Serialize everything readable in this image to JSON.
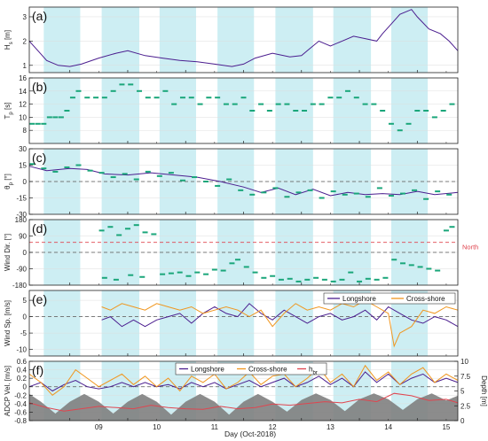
{
  "figure": {
    "xlabel": "Day (Oct-2018)",
    "xtick_labels": [
      "09",
      "10",
      "11",
      "12",
      "13",
      "14",
      "15"
    ],
    "xlim": [
      8.3,
      15.7
    ],
    "colors": {
      "shade": "#cdeef3",
      "series_purple": "#4b1e8f",
      "series_orange": "#f0961e",
      "series_green": "#1aa67a",
      "hbr": "#e0454f",
      "north_line": "#e0454f",
      "zero_line": "#555555",
      "depth_fill": "#808080",
      "axis": "#222222"
    }
  },
  "shaded_days": [
    [
      8.55,
      9.18
    ],
    [
      9.55,
      10.2
    ],
    [
      10.55,
      11.18
    ],
    [
      11.55,
      12.18
    ],
    [
      12.55,
      13.2
    ],
    [
      13.55,
      14.2
    ],
    [
      14.55,
      15.18
    ]
  ],
  "chart_data": [
    {
      "panel": "(a)",
      "type": "line",
      "ylabel": "H_s [m]",
      "ylabel_main": "H",
      "ylabel_sub": "s",
      "ylabel_tail": " [m]",
      "ylim": [
        0.7,
        3.4
      ],
      "yticks": [
        1,
        2,
        3
      ],
      "series": [
        {
          "color": "#4b1e8f",
          "x": [
            8.3,
            8.45,
            8.6,
            8.8,
            9.0,
            9.2,
            9.5,
            9.8,
            10.0,
            10.3,
            10.6,
            10.9,
            11.2,
            11.5,
            11.8,
            12.0,
            12.2,
            12.5,
            12.8,
            13.0,
            13.1,
            13.3,
            13.5,
            13.7,
            13.9,
            14.1,
            14.3,
            14.4,
            14.55,
            14.7,
            14.9,
            15.0,
            15.2,
            15.4,
            15.55,
            15.7
          ],
          "y": [
            2.0,
            1.6,
            1.2,
            1.0,
            0.95,
            1.05,
            1.3,
            1.5,
            1.6,
            1.4,
            1.3,
            1.2,
            1.15,
            1.05,
            0.95,
            1.05,
            1.3,
            1.5,
            1.35,
            1.4,
            1.6,
            2.0,
            1.8,
            2.0,
            2.2,
            2.1,
            2.0,
            2.3,
            2.7,
            3.1,
            3.3,
            3.0,
            2.5,
            2.3,
            2.0,
            1.6
          ]
        }
      ]
    },
    {
      "panel": "(b)",
      "type": "scatter",
      "ylabel": "T_p [s]",
      "ylabel_main": "T",
      "ylabel_sub": "p",
      "ylabel_tail": " [s]",
      "ylim": [
        6,
        16
      ],
      "yticks": [
        8,
        10,
        12,
        14,
        16
      ],
      "series": [
        {
          "color": "#1aa67a",
          "x": [
            8.35,
            8.45,
            8.55,
            8.65,
            8.75,
            8.85,
            8.95,
            9.05,
            9.15,
            9.3,
            9.45,
            9.6,
            9.75,
            9.9,
            10.05,
            10.2,
            10.35,
            10.5,
            10.65,
            10.8,
            10.95,
            11.1,
            11.25,
            11.4,
            11.55,
            11.7,
            11.85,
            12.0,
            12.15,
            12.3,
            12.45,
            12.6,
            12.75,
            12.9,
            13.05,
            13.2,
            13.35,
            13.5,
            13.65,
            13.8,
            13.95,
            14.1,
            14.25,
            14.4,
            14.55,
            14.7,
            14.85,
            15.0,
            15.15,
            15.3,
            15.45,
            15.6
          ],
          "y": [
            9,
            9,
            9,
            10,
            10,
            10,
            11,
            13,
            14,
            13,
            13,
            13,
            14,
            15,
            15,
            14,
            13,
            13,
            14,
            12,
            13,
            13,
            12,
            13,
            13,
            12,
            12,
            13,
            11,
            12,
            11,
            12,
            12,
            11,
            11,
            12,
            12,
            13,
            13,
            14,
            13,
            12,
            12,
            11,
            9,
            8,
            9,
            11,
            11,
            10,
            11,
            12
          ]
        }
      ]
    },
    {
      "panel": "(c)",
      "type": "line",
      "ylabel": "θ_p [°]",
      "ylabel_main": "θ",
      "ylabel_sub": "p",
      "ylabel_tail": " [°]",
      "ylim": [
        -30,
        30
      ],
      "yticks": [
        -30,
        -15,
        0,
        15,
        30
      ],
      "series": [
        {
          "color": "#4b1e8f",
          "kind": "line",
          "x": [
            8.3,
            8.6,
            9.0,
            9.3,
            9.6,
            10.0,
            10.4,
            10.8,
            11.2,
            11.6,
            12.0,
            12.3,
            12.6,
            12.9,
            13.2,
            13.5,
            13.8,
            14.1,
            14.4,
            14.7,
            15.0,
            15.3,
            15.7
          ],
          "y": [
            14,
            10,
            12,
            11,
            7,
            6,
            8,
            6,
            4,
            0,
            -5,
            -10,
            -6,
            -12,
            -7,
            -13,
            -10,
            -12,
            -11,
            -12,
            -9,
            -12,
            -10
          ]
        },
        {
          "color": "#1aa67a",
          "kind": "points",
          "x": [
            8.35,
            8.55,
            8.75,
            8.95,
            9.15,
            9.35,
            9.55,
            9.75,
            9.95,
            10.15,
            10.35,
            10.55,
            10.75,
            10.95,
            11.15,
            11.35,
            11.55,
            11.75,
            11.95,
            12.15,
            12.35,
            12.55,
            12.75,
            12.95,
            13.15,
            13.35,
            13.55,
            13.75,
            13.95,
            14.15,
            14.35,
            14.55,
            14.75,
            14.95,
            15.15,
            15.35,
            15.55
          ],
          "y": [
            16,
            12,
            9,
            13,
            15,
            10,
            8,
            4,
            7,
            2,
            9,
            5,
            8,
            1,
            4,
            0,
            -4,
            2,
            -8,
            -12,
            -10,
            -6,
            -14,
            -10,
            -8,
            -15,
            -9,
            -12,
            -11,
            -14,
            -6,
            -13,
            -11,
            -8,
            -16,
            -9,
            -12
          ]
        }
      ]
    },
    {
      "panel": "(d)",
      "type": "scatter",
      "ylabel": "Wind Dir. [°]",
      "ylim": [
        -180,
        180
      ],
      "yticks": [
        -180,
        -90,
        0,
        90,
        180
      ],
      "annotation": "North",
      "north_value": 55,
      "series": [
        {
          "color": "#1aa67a",
          "x": [
            9.55,
            9.7,
            9.85,
            10.0,
            10.15,
            10.3,
            10.45,
            9.6,
            9.8,
            10.05,
            10.25,
            10.6,
            10.75,
            10.9,
            11.05,
            11.2,
            11.35,
            11.5,
            11.65,
            11.8,
            11.9,
            12.05,
            12.2,
            12.35,
            12.5,
            12.65,
            12.8,
            12.95,
            13.1,
            13.25,
            13.4,
            13.55,
            13.7,
            13.85,
            14.0,
            14.15,
            14.3,
            14.45,
            14.6,
            14.75,
            14.9,
            15.05,
            15.2,
            15.35,
            15.5,
            15.6
          ],
          "y": [
            120,
            140,
            95,
            130,
            150,
            110,
            100,
            -140,
            -150,
            -125,
            -135,
            -120,
            -115,
            -110,
            -130,
            -110,
            -120,
            -95,
            -100,
            -60,
            -40,
            -80,
            -110,
            -140,
            -130,
            -150,
            -145,
            -160,
            -150,
            -140,
            -150,
            -160,
            -150,
            -110,
            -160,
            -145,
            -150,
            -140,
            -40,
            -60,
            -70,
            -80,
            -90,
            -100,
            120,
            140
          ]
        }
      ]
    },
    {
      "panel": "(e)",
      "type": "line",
      "ylabel": "Wind Sp. [m/s]",
      "ylim": [
        -12,
        8
      ],
      "yticks": [
        -10,
        -5,
        0,
        5
      ],
      "legend": [
        "Longshore",
        "Cross-shore"
      ],
      "legend_position": "top-right",
      "series": [
        {
          "name": "Longshore",
          "color": "#4b1e8f",
          "x": [
            9.55,
            9.7,
            9.9,
            10.1,
            10.3,
            10.5,
            10.7,
            10.9,
            11.1,
            11.3,
            11.5,
            11.7,
            11.9,
            12.1,
            12.3,
            12.5,
            12.7,
            12.9,
            13.1,
            13.3,
            13.5,
            13.7,
            13.9,
            14.1,
            14.3,
            14.5,
            14.7,
            14.9,
            15.1,
            15.3,
            15.5,
            15.7
          ],
          "y": [
            -1,
            0,
            -3,
            -1,
            -3,
            -1,
            0,
            1,
            -2,
            1,
            3,
            1,
            0,
            4,
            1,
            -1,
            2,
            0,
            -2,
            0,
            1,
            -1,
            0,
            2,
            -1,
            3,
            1,
            -1,
            -2,
            0,
            -1,
            -3
          ]
        },
        {
          "name": "Cross-shore",
          "color": "#f0961e",
          "x": [
            9.55,
            9.7,
            9.9,
            10.1,
            10.3,
            10.5,
            10.7,
            10.9,
            11.1,
            11.3,
            11.5,
            11.7,
            11.9,
            12.1,
            12.3,
            12.5,
            12.7,
            12.9,
            13.1,
            13.3,
            13.5,
            13.7,
            13.9,
            14.1,
            14.3,
            14.5,
            14.6,
            14.7,
            14.9,
            15.1,
            15.3,
            15.5,
            15.7
          ],
          "y": [
            3,
            2,
            4,
            3,
            2,
            4,
            3,
            2,
            3,
            1,
            2,
            3,
            2,
            0,
            2,
            -3,
            1,
            4,
            2,
            3,
            2,
            4,
            3,
            5,
            3,
            1,
            -9,
            -5,
            -3,
            2,
            1,
            3,
            2
          ]
        }
      ]
    },
    {
      "panel": "(f)",
      "type": "line",
      "ylabel": "ADCP Vel. [m/s]",
      "ylim": [
        -0.8,
        0.6
      ],
      "yticks": [
        -0.8,
        -0.6,
        -0.4,
        -0.2,
        0,
        0.2,
        0.4,
        0.6
      ],
      "ylabel_right": "Depth [m]",
      "ylim_right": [
        0,
        10
      ],
      "yticks_right": [
        0,
        2.5,
        5,
        7.5,
        10
      ],
      "legend": [
        "Longshore",
        "Cross-shore",
        "h_br"
      ],
      "legend_position": "top",
      "series": [
        {
          "name": "Longshore",
          "color": "#4b1e8f",
          "x": [
            8.3,
            8.5,
            8.7,
            8.9,
            9.1,
            9.3,
            9.5,
            9.7,
            9.9,
            10.1,
            10.3,
            10.5,
            10.7,
            10.9,
            11.1,
            11.3,
            11.5,
            11.7,
            11.9,
            12.1,
            12.3,
            12.5,
            12.7,
            12.9,
            13.1,
            13.3,
            13.5,
            13.7,
            13.9,
            14.1,
            14.3,
            14.5,
            14.7,
            14.9,
            15.1,
            15.3,
            15.5,
            15.7
          ],
          "y": [
            0.0,
            0.1,
            -0.1,
            0.05,
            0.15,
            0.0,
            -0.05,
            0.0,
            0.1,
            0.0,
            0.1,
            0.0,
            0.05,
            -0.05,
            0.1,
            0.0,
            0.1,
            -0.05,
            0.05,
            0.15,
            0.0,
            0.1,
            0.2,
            0.0,
            0.1,
            0.25,
            0.05,
            0.2,
            0.0,
            0.35,
            0.1,
            0.3,
            0.05,
            0.2,
            0.3,
            0.1,
            0.2,
            0.1
          ]
        },
        {
          "name": "Cross-shore",
          "color": "#f0961e",
          "x": [
            8.3,
            8.5,
            8.7,
            8.9,
            9.1,
            9.3,
            9.5,
            9.7,
            9.9,
            10.1,
            10.3,
            10.5,
            10.7,
            10.9,
            11.1,
            11.3,
            11.5,
            11.7,
            11.9,
            12.1,
            12.3,
            12.5,
            12.7,
            12.9,
            13.1,
            13.3,
            13.5,
            13.7,
            13.9,
            14.1,
            14.3,
            14.5,
            14.7,
            14.9,
            15.1,
            15.3,
            15.5,
            15.7
          ],
          "y": [
            0.3,
            0.1,
            -0.2,
            0.0,
            0.4,
            0.2,
            0.0,
            0.15,
            0.3,
            0.05,
            0.25,
            0.0,
            0.2,
            -0.1,
            0.25,
            0.1,
            0.3,
            -0.05,
            0.1,
            0.35,
            0.05,
            0.25,
            0.3,
            0.0,
            0.2,
            0.45,
            0.1,
            0.3,
            0.0,
            0.5,
            0.15,
            0.35,
            0.05,
            0.3,
            0.45,
            0.1,
            0.3,
            0.15
          ]
        },
        {
          "name": "h_br",
          "color": "#e0454f",
          "axis": "right",
          "x": [
            8.3,
            8.6,
            8.9,
            9.2,
            9.5,
            9.8,
            10.1,
            10.4,
            10.7,
            11.0,
            11.3,
            11.6,
            11.9,
            12.2,
            12.5,
            12.8,
            13.1,
            13.4,
            13.7,
            14.0,
            14.3,
            14.6,
            14.9,
            15.2,
            15.5,
            15.7
          ],
          "y": [
            3.0,
            2.2,
            1.6,
            2.0,
            2.4,
            2.2,
            2.0,
            2.6,
            2.2,
            2.0,
            1.9,
            2.4,
            2.0,
            2.2,
            2.8,
            2.6,
            2.9,
            3.2,
            3.0,
            3.6,
            3.2,
            4.6,
            4.2,
            3.4,
            3.6,
            3.0
          ]
        },
        {
          "name": "Depth",
          "color": "#808080",
          "axis": "right",
          "kind": "area",
          "x": [
            8.3,
            8.5,
            8.75,
            9.0,
            9.25,
            9.5,
            9.75,
            10.0,
            10.25,
            10.5,
            10.75,
            11.0,
            11.25,
            11.5,
            11.75,
            12.0,
            12.25,
            12.5,
            12.75,
            13.0,
            13.25,
            13.5,
            13.75,
            14.0,
            14.25,
            14.5,
            14.75,
            15.0,
            15.25,
            15.5,
            15.7
          ],
          "y": [
            4.5,
            3.2,
            1.2,
            3.2,
            4.5,
            3.2,
            1.2,
            3.2,
            4.5,
            3.2,
            1.0,
            3.2,
            4.5,
            3.2,
            1.0,
            3.2,
            4.5,
            3.2,
            1.5,
            3.5,
            4.6,
            3.5,
            1.6,
            3.6,
            4.6,
            3.6,
            1.8,
            3.6,
            4.6,
            3.4,
            4.2
          ]
        }
      ]
    }
  ]
}
